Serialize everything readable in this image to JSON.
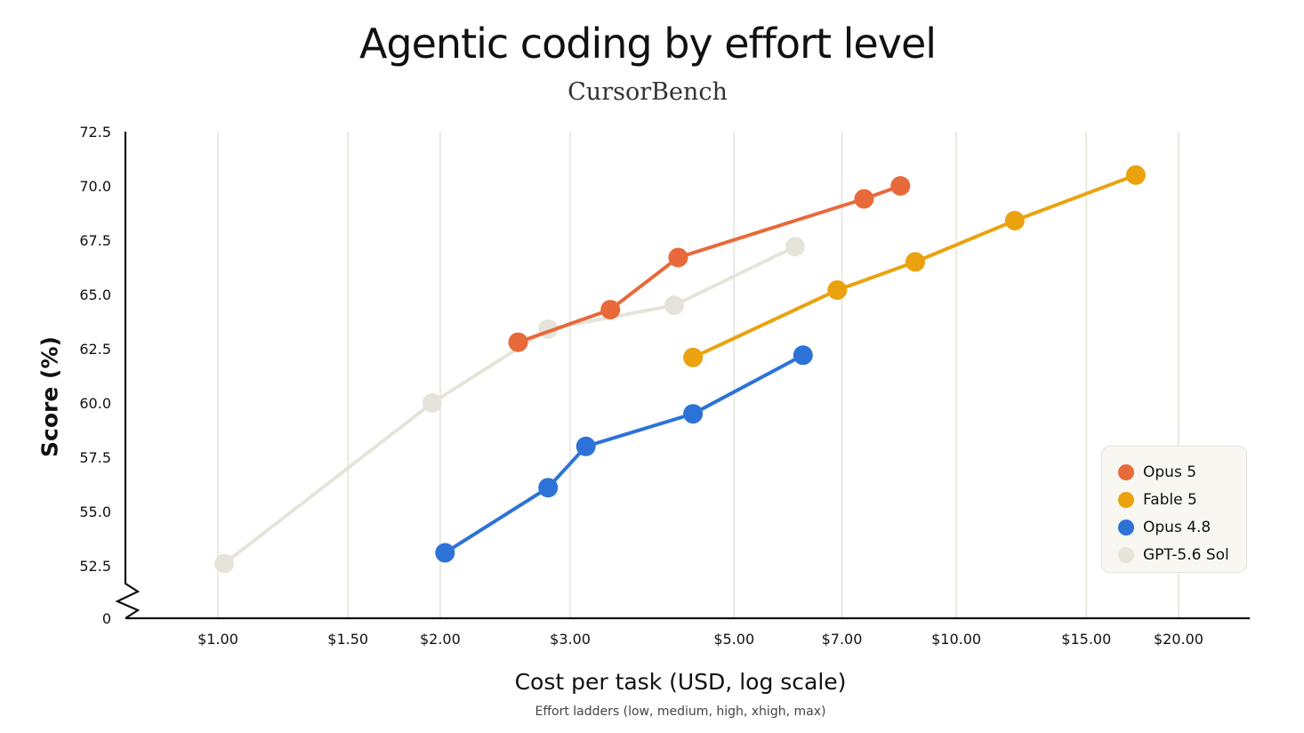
{
  "chart_data": {
    "type": "line",
    "title": "Agentic coding by effort level",
    "subtitle": "CursorBench",
    "xlabel": "Cost per task (USD, log scale)",
    "ylabel": "Score (%)",
    "note": "Effort ladders (low, medium, high, xhigh, max)",
    "x_scale": "log",
    "xlim": [
      0.8,
      25
    ],
    "ylim": [
      52.5,
      72.5
    ],
    "y_axis_break": true,
    "x_ticks": [
      1.0,
      1.5,
      2.0,
      3.0,
      5.0,
      7.0,
      10.0,
      15.0,
      20.0
    ],
    "x_tick_labels": [
      "$1.00",
      "$1.50",
      "$2.00",
      "$3.00",
      "$5.00",
      "$7.00",
      "$10.00",
      "$15.00",
      "$20.00"
    ],
    "y_ticks": [
      52.5,
      55.0,
      57.5,
      60.0,
      62.5,
      65.0,
      67.5,
      70.0,
      72.5
    ],
    "y_tick_labels": [
      "52.5",
      "55.0",
      "57.5",
      "60.0",
      "62.5",
      "65.0",
      "67.5",
      "70.0",
      "72.5"
    ],
    "y_break_label": "0",
    "grid": "vertical",
    "legend_position": "bottom-right",
    "series": [
      {
        "name": "GPT-5.6 Sol",
        "color": "#e6e4da",
        "points": [
          [
            1.02,
            52.6
          ],
          [
            1.95,
            60.0
          ],
          [
            2.8,
            63.4
          ],
          [
            4.15,
            64.5
          ],
          [
            6.05,
            67.2
          ]
        ]
      },
      {
        "name": "Opus 5",
        "color": "#e8693a",
        "points": [
          [
            2.55,
            62.8
          ],
          [
            3.4,
            64.3
          ],
          [
            4.2,
            66.7
          ],
          [
            7.5,
            69.4
          ],
          [
            8.4,
            70.0
          ]
        ]
      },
      {
        "name": "Fable 5",
        "color": "#eaa20e",
        "points": [
          [
            4.4,
            62.1
          ],
          [
            6.9,
            65.2
          ],
          [
            8.8,
            66.5
          ],
          [
            12.0,
            68.4
          ],
          [
            17.5,
            70.5
          ]
        ]
      },
      {
        "name": "Opus 4.8",
        "color": "#2d73d7",
        "points": [
          [
            2.03,
            53.1
          ],
          [
            2.8,
            56.1
          ],
          [
            3.15,
            58.0
          ],
          [
            4.4,
            59.5
          ],
          [
            6.2,
            62.2
          ]
        ]
      }
    ],
    "legend_order": [
      "Opus 5",
      "Fable 5",
      "Opus 4.8",
      "GPT-5.6 Sol"
    ]
  }
}
